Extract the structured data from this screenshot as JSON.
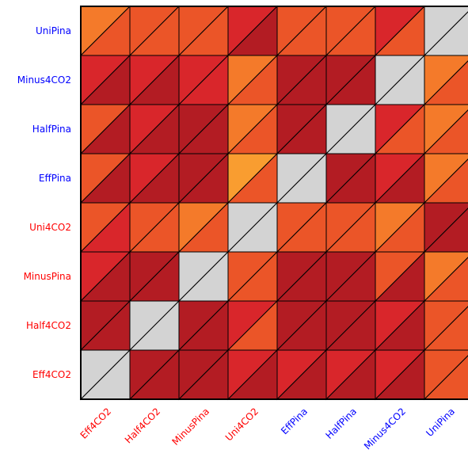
{
  "chart_data": {
    "type": "heatmap",
    "variant": "triangle-split matrix",
    "x_labels": [
      {
        "text": "Eff4CO2",
        "color": "#ff0000"
      },
      {
        "text": "Half4CO2",
        "color": "#ff0000"
      },
      {
        "text": "MinusPina",
        "color": "#ff0000"
      },
      {
        "text": "Uni4CO2",
        "color": "#ff0000"
      },
      {
        "text": "EffPina",
        "color": "#0000ff"
      },
      {
        "text": "HalfPina",
        "color": "#0000ff"
      },
      {
        "text": "Minus4CO2",
        "color": "#0000ff"
      },
      {
        "text": "UniPina",
        "color": "#0000ff"
      }
    ],
    "y_labels_top_to_bottom": [
      {
        "text": "UniPina",
        "color": "#0000ff"
      },
      {
        "text": "Minus4CO2",
        "color": "#0000ff"
      },
      {
        "text": "HalfPina",
        "color": "#0000ff"
      },
      {
        "text": "EffPina",
        "color": "#0000ff"
      },
      {
        "text": "Uni4CO2",
        "color": "#ff0000"
      },
      {
        "text": "MinusPina",
        "color": "#ff0000"
      },
      {
        "text": "Half4CO2",
        "color": "#ff0000"
      },
      {
        "text": "Eff4CO2",
        "color": "#ff0000"
      }
    ],
    "diagonal_color": "#d3d3d3",
    "colors": {
      "D": "#b31c23",
      "R": "#d9262b",
      "O": "#eb5528",
      "L": "#f47a2a",
      "Y": "#f99d30",
      "G": "#d3d3d3"
    },
    "upper_triangles": [
      [
        "L",
        "O",
        "O",
        "R",
        "O",
        "O",
        "R",
        "G"
      ],
      [
        "R",
        "R",
        "R",
        "L",
        "D",
        "D",
        "G",
        "L"
      ],
      [
        "O",
        "R",
        "D",
        "L",
        "D",
        "G",
        "R",
        "L"
      ],
      [
        "O",
        "R",
        "D",
        "Y",
        "G",
        "D",
        "R",
        "L"
      ],
      [
        "O",
        "O",
        "L",
        "G",
        "O",
        "O",
        "L",
        "D"
      ],
      [
        "R",
        "D",
        "G",
        "O",
        "D",
        "D",
        "O",
        "L"
      ],
      [
        "D",
        "G",
        "D",
        "R",
        "D",
        "D",
        "R",
        "O"
      ],
      [
        "G",
        "D",
        "D",
        "R",
        "R",
        "R",
        "R",
        "O"
      ]
    ],
    "lower_triangles": [
      [
        "O",
        "O",
        "O",
        "D",
        "O",
        "O",
        "O",
        "G"
      ],
      [
        "D",
        "D",
        "R",
        "O",
        "D",
        "D",
        "G",
        "O"
      ],
      [
        "D",
        "D",
        "D",
        "O",
        "D",
        "G",
        "O",
        "O"
      ],
      [
        "D",
        "D",
        "D",
        "O",
        "G",
        "D",
        "D",
        "O"
      ],
      [
        "R",
        "O",
        "O",
        "G",
        "O",
        "O",
        "O",
        "D"
      ],
      [
        "D",
        "D",
        "G",
        "O",
        "D",
        "D",
        "D",
        "O"
      ],
      [
        "D",
        "G",
        "D",
        "O",
        "D",
        "D",
        "D",
        "O"
      ],
      [
        "G",
        "D",
        "D",
        "D",
        "D",
        "D",
        "D",
        "O"
      ]
    ]
  }
}
